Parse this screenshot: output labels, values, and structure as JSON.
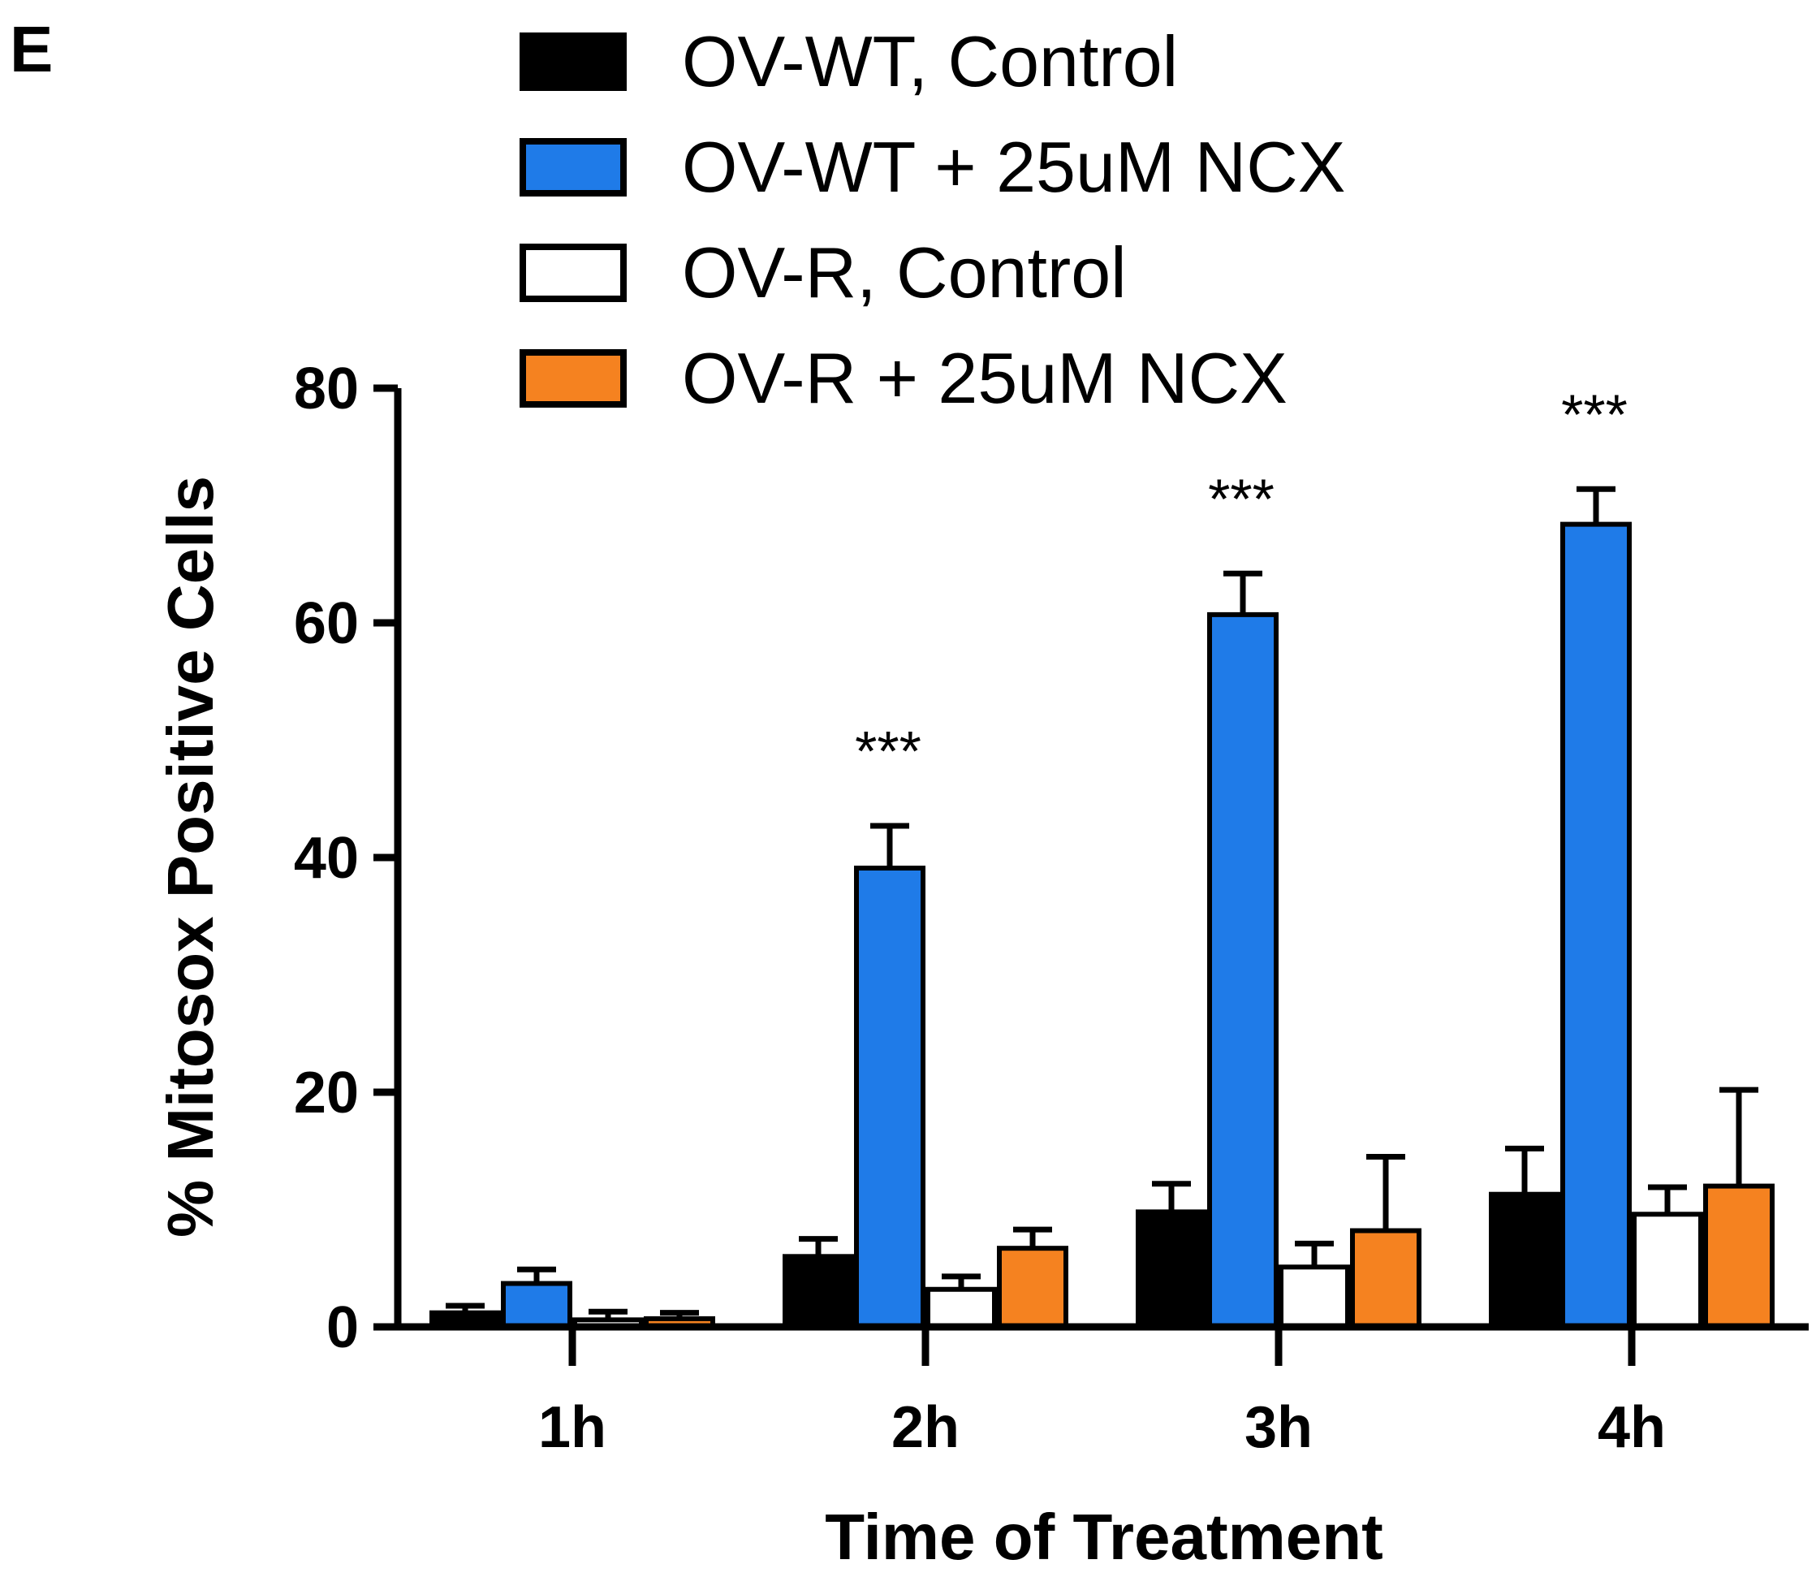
{
  "panel_label": "E",
  "chart_data": {
    "type": "bar",
    "categories": [
      "1h",
      "2h",
      "3h",
      "4h"
    ],
    "xlabel": "Time of Treatment",
    "ylabel": "% Mitosox Positive Cells",
    "ylim": [
      0,
      80
    ],
    "yticks": [
      0,
      20,
      40,
      60,
      80
    ],
    "legend_position": "top",
    "series": [
      {
        "name": "OV-WT, Control",
        "color": "#000000",
        "values": [
          1.2,
          6.0,
          9.8,
          11.3
        ],
        "errors": [
          0.6,
          1.5,
          2.4,
          3.9
        ]
      },
      {
        "name": "OV-WT + 25uM NCX",
        "color": "#1F7BE8",
        "values": [
          3.7,
          39.1,
          60.7,
          68.4
        ],
        "errors": [
          1.2,
          3.6,
          3.5,
          3.0
        ]
      },
      {
        "name": "OV-R, Control",
        "color": "#FFFFFF",
        "values": [
          0.6,
          3.2,
          5.1,
          9.6
        ],
        "errors": [
          0.7,
          1.1,
          2.0,
          2.3
        ]
      },
      {
        "name": "OV-R + 25uM NCX",
        "color": "#F58220",
        "values": [
          0.7,
          6.7,
          8.2,
          12.0
        ],
        "errors": [
          0.5,
          1.6,
          6.3,
          8.2
        ]
      }
    ],
    "annotations": [
      {
        "category": "2h",
        "text": "***"
      },
      {
        "category": "3h",
        "text": "***"
      },
      {
        "category": "4h",
        "text": "***"
      }
    ]
  }
}
